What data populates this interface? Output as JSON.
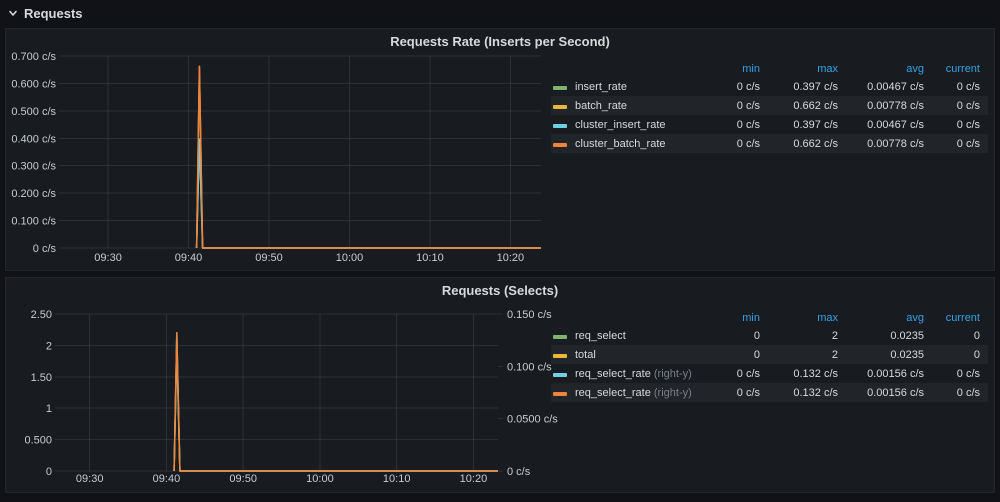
{
  "row_header": {
    "label": "Requests"
  },
  "colors": {
    "page_bg": "#111217",
    "panel_bg": "#181b1f",
    "panel_border": "#23252b",
    "grid": "rgba(255,255,255,0.09)",
    "text": "#d8d9da",
    "axis_text": "#c7ccd1",
    "legend_header": "#33a2e5",
    "dim_text": "#7b8087",
    "series_green": "#7EB26D",
    "series_yellow": "#EAB839",
    "series_cyan": "#6ED0E0",
    "series_orange": "#EF843C"
  },
  "chart_data": [
    {
      "type": "line",
      "title": "Requests Rate (Inserts per Second)",
      "xlabel": "",
      "ylabel": "",
      "legend_position": "right-table",
      "grid": true,
      "xlim_minutes_after_0900": [
        24.4,
        83.8
      ],
      "x_ticks": [
        {
          "t": 30,
          "label": "09:30"
        },
        {
          "t": 40,
          "label": "09:40"
        },
        {
          "t": 50,
          "label": "09:50"
        },
        {
          "t": 60,
          "label": "10:00"
        },
        {
          "t": 70,
          "label": "10:10"
        },
        {
          "t": 80,
          "label": "10:20"
        }
      ],
      "left_axis": {
        "min": 0,
        "max": 0.7,
        "ticks": [
          {
            "v": 0.7,
            "label": "0.700 c/s"
          },
          {
            "v": 0.6,
            "label": "0.600 c/s"
          },
          {
            "v": 0.5,
            "label": "0.500 c/s"
          },
          {
            "v": 0.4,
            "label": "0.400 c/s"
          },
          {
            "v": 0.3,
            "label": "0.300 c/s"
          },
          {
            "v": 0.2,
            "label": "0.200 c/s"
          },
          {
            "v": 0.1,
            "label": "0.100 c/s"
          },
          {
            "v": 0,
            "label": "0 c/s"
          }
        ]
      },
      "series": [
        {
          "name": "insert_rate",
          "color": "#7EB26D",
          "axis": "left",
          "points": [
            [
              41.0,
              0
            ],
            [
              41.35,
              0.397
            ],
            [
              41.75,
              0
            ],
            [
              83.8,
              0
            ]
          ]
        },
        {
          "name": "batch_rate",
          "color": "#EAB839",
          "axis": "left",
          "points": [
            [
              41.0,
              0
            ],
            [
              41.35,
              0.662
            ],
            [
              41.75,
              0
            ],
            [
              83.8,
              0
            ]
          ]
        },
        {
          "name": "cluster_insert_rate",
          "color": "#6ED0E0",
          "axis": "left",
          "points": [
            [
              41.0,
              0
            ],
            [
              41.35,
              0.397
            ],
            [
              41.75,
              0
            ],
            [
              83.8,
              0
            ]
          ]
        },
        {
          "name": "cluster_batch_rate",
          "color": "#EF843C",
          "axis": "left",
          "points": [
            [
              41.0,
              0
            ],
            [
              41.35,
              0.662
            ],
            [
              41.75,
              0
            ],
            [
              83.8,
              0
            ]
          ]
        }
      ],
      "legend": {
        "columns": [
          "min",
          "max",
          "avg",
          "current"
        ],
        "rows": [
          {
            "name": "insert_rate",
            "color": "#7EB26D",
            "values": [
              "0 c/s",
              "0.397 c/s",
              "0.00467 c/s",
              "0 c/s"
            ]
          },
          {
            "name": "batch_rate",
            "color": "#EAB839",
            "values": [
              "0 c/s",
              "0.662 c/s",
              "0.00778 c/s",
              "0 c/s"
            ]
          },
          {
            "name": "cluster_insert_rate",
            "color": "#6ED0E0",
            "values": [
              "0 c/s",
              "0.397 c/s",
              "0.00467 c/s",
              "0 c/s"
            ]
          },
          {
            "name": "cluster_batch_rate",
            "color": "#EF843C",
            "values": [
              "0 c/s",
              "0.662 c/s",
              "0.00778 c/s",
              "0 c/s"
            ]
          }
        ]
      }
    },
    {
      "type": "line",
      "title": "Requests (Selects)",
      "xlabel": "",
      "ylabel": "",
      "legend_position": "right-table",
      "grid": true,
      "xlim_minutes_after_0900": [
        26.0,
        83.2
      ],
      "x_ticks": [
        {
          "t": 30,
          "label": "09:30"
        },
        {
          "t": 40,
          "label": "09:40"
        },
        {
          "t": 50,
          "label": "09:50"
        },
        {
          "t": 60,
          "label": "10:00"
        },
        {
          "t": 70,
          "label": "10:10"
        },
        {
          "t": 80,
          "label": "10:20"
        }
      ],
      "left_axis": {
        "min": 0,
        "max": 2.5,
        "ticks": [
          {
            "v": 2.5,
            "label": "2.50"
          },
          {
            "v": 2,
            "label": "2"
          },
          {
            "v": 1.5,
            "label": "1.50"
          },
          {
            "v": 1,
            "label": "1"
          },
          {
            "v": 0.5,
            "label": "0.500"
          },
          {
            "v": 0,
            "label": "0"
          }
        ]
      },
      "right_axis": {
        "min": 0,
        "max": 0.15,
        "ticks": [
          {
            "v": 0.15,
            "label": "0.150 c/s"
          },
          {
            "v": 0.1,
            "label": "0.100 c/s"
          },
          {
            "v": 0.05,
            "label": "0.0500 c/s"
          },
          {
            "v": 0,
            "label": "0 c/s"
          }
        ]
      },
      "series": [
        {
          "name": "req_select",
          "color": "#7EB26D",
          "axis": "left",
          "points": [
            [
              41.0,
              0
            ],
            [
              41.35,
              2
            ],
            [
              41.75,
              0
            ],
            [
              83.2,
              0
            ]
          ]
        },
        {
          "name": "total",
          "color": "#EAB839",
          "axis": "left",
          "points": [
            [
              41.0,
              0
            ],
            [
              41.35,
              2
            ],
            [
              41.75,
              0
            ],
            [
              83.2,
              0
            ]
          ]
        },
        {
          "name": "req_select_rate",
          "color": "#6ED0E0",
          "axis": "right",
          "points": [
            [
              41.0,
              0
            ],
            [
              41.35,
              0.132
            ],
            [
              41.75,
              0
            ],
            [
              83.2,
              0
            ]
          ]
        },
        {
          "name": "req_select_rate",
          "color": "#EF843C",
          "axis": "right",
          "points": [
            [
              41.0,
              0
            ],
            [
              41.35,
              0.132
            ],
            [
              41.75,
              0
            ],
            [
              83.2,
              0
            ]
          ]
        }
      ],
      "legend": {
        "columns": [
          "min",
          "max",
          "avg",
          "current"
        ],
        "rows": [
          {
            "name": "req_select",
            "color": "#7EB26D",
            "values": [
              "0",
              "2",
              "0.0235",
              "0"
            ]
          },
          {
            "name": "total",
            "color": "#EAB839",
            "values": [
              "0",
              "2",
              "0.0235",
              "0"
            ]
          },
          {
            "name": "req_select_rate",
            "suffix": "(right-y)",
            "color": "#6ED0E0",
            "values": [
              "0 c/s",
              "0.132 c/s",
              "0.00156 c/s",
              "0 c/s"
            ]
          },
          {
            "name": "req_select_rate",
            "suffix": "(right-y)",
            "color": "#EF843C",
            "values": [
              "0 c/s",
              "0.132 c/s",
              "0.00156 c/s",
              "0 c/s"
            ]
          }
        ]
      }
    }
  ]
}
